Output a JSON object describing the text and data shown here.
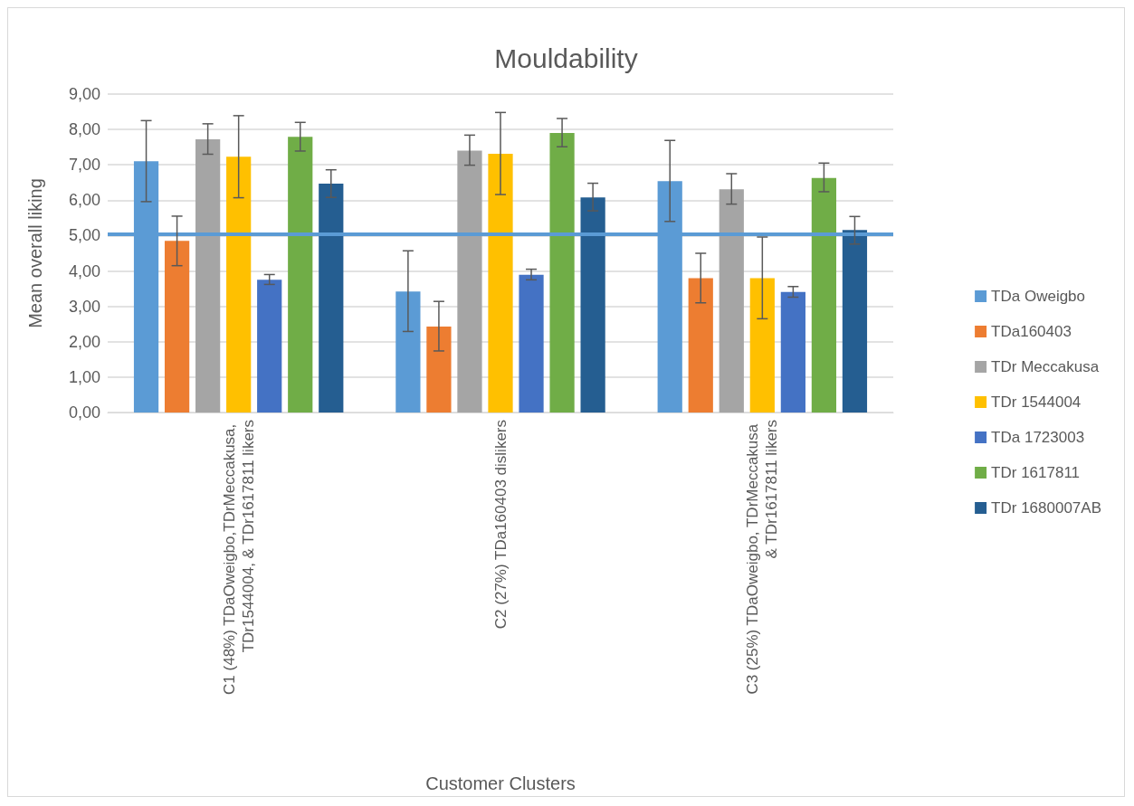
{
  "chart_data": {
    "type": "bar",
    "title": "Mouldability",
    "xlabel": "Customer Clusters",
    "ylabel": "Mean overall liking",
    "categories": [
      "C1 (48%) TDaOweigbo,TDrMeccakusa, TDr1544004, & TDr1617811 likers",
      "C2 (27%) TDa160403 dislikers",
      "C3 (25%) TDaOweigbo, TDrMeccakusa & TDr1617811 likers"
    ],
    "series": [
      {
        "name": "TDa Oweigbo",
        "color": "#5b9bd5",
        "values": [
          7.1,
          3.42,
          6.54
        ],
        "errors": [
          [
            5.96,
            8.25
          ],
          [
            2.29,
            4.57
          ],
          [
            5.4,
            7.69
          ]
        ]
      },
      {
        "name": "TDa160403",
        "color": "#ed7d31",
        "values": [
          4.85,
          2.43,
          3.8
        ],
        "errors": [
          [
            4.15,
            5.55
          ],
          [
            1.74,
            3.14
          ],
          [
            3.1,
            4.5
          ]
        ]
      },
      {
        "name": "TDr Meccakusa",
        "color": "#a5a5a5",
        "values": [
          7.72,
          7.4,
          6.31
        ],
        "errors": [
          [
            7.3,
            8.16
          ],
          [
            6.99,
            7.84
          ],
          [
            5.89,
            6.75
          ]
        ]
      },
      {
        "name": "TDr 1544004",
        "color": "#ffc000",
        "values": [
          7.23,
          7.31,
          3.8
        ],
        "errors": [
          [
            6.07,
            8.39
          ],
          [
            6.16,
            8.48
          ],
          [
            2.65,
            4.96
          ]
        ]
      },
      {
        "name": "TDa 1723003",
        "color": "#4472c4",
        "values": [
          3.75,
          3.89,
          3.41
        ],
        "errors": [
          [
            3.62,
            3.9
          ],
          [
            3.75,
            4.05
          ],
          [
            3.26,
            3.56
          ]
        ]
      },
      {
        "name": "TDr 1617811",
        "color": "#70ad47",
        "values": [
          7.79,
          7.9,
          6.63
        ],
        "errors": [
          [
            7.39,
            8.2
          ],
          [
            7.51,
            8.31
          ],
          [
            6.24,
            7.05
          ]
        ]
      },
      {
        "name": "TDr 1680007AB",
        "color": "#255e91",
        "values": [
          6.47,
          6.08,
          5.16
        ],
        "errors": [
          [
            6.08,
            6.86
          ],
          [
            5.7,
            6.48
          ],
          [
            4.76,
            5.54
          ]
        ]
      }
    ],
    "ylim": [
      0,
      9
    ],
    "yticks": [
      {
        "value": 0,
        "label": "0,00"
      },
      {
        "value": 1,
        "label": "1,00"
      },
      {
        "value": 2,
        "label": "2,00"
      },
      {
        "value": 3,
        "label": "3,00"
      },
      {
        "value": 4,
        "label": "4,00"
      },
      {
        "value": 5,
        "label": "5,00"
      },
      {
        "value": 6,
        "label": "6,00"
      },
      {
        "value": 7,
        "label": "7,00"
      },
      {
        "value": 8,
        "label": "8,00"
      },
      {
        "value": 9,
        "label": "9,00"
      }
    ],
    "ref_lines": [
      {
        "axis": "y",
        "value": 5.05,
        "color": "#5b9bd5"
      }
    ],
    "grid": "y",
    "legend": "right"
  }
}
